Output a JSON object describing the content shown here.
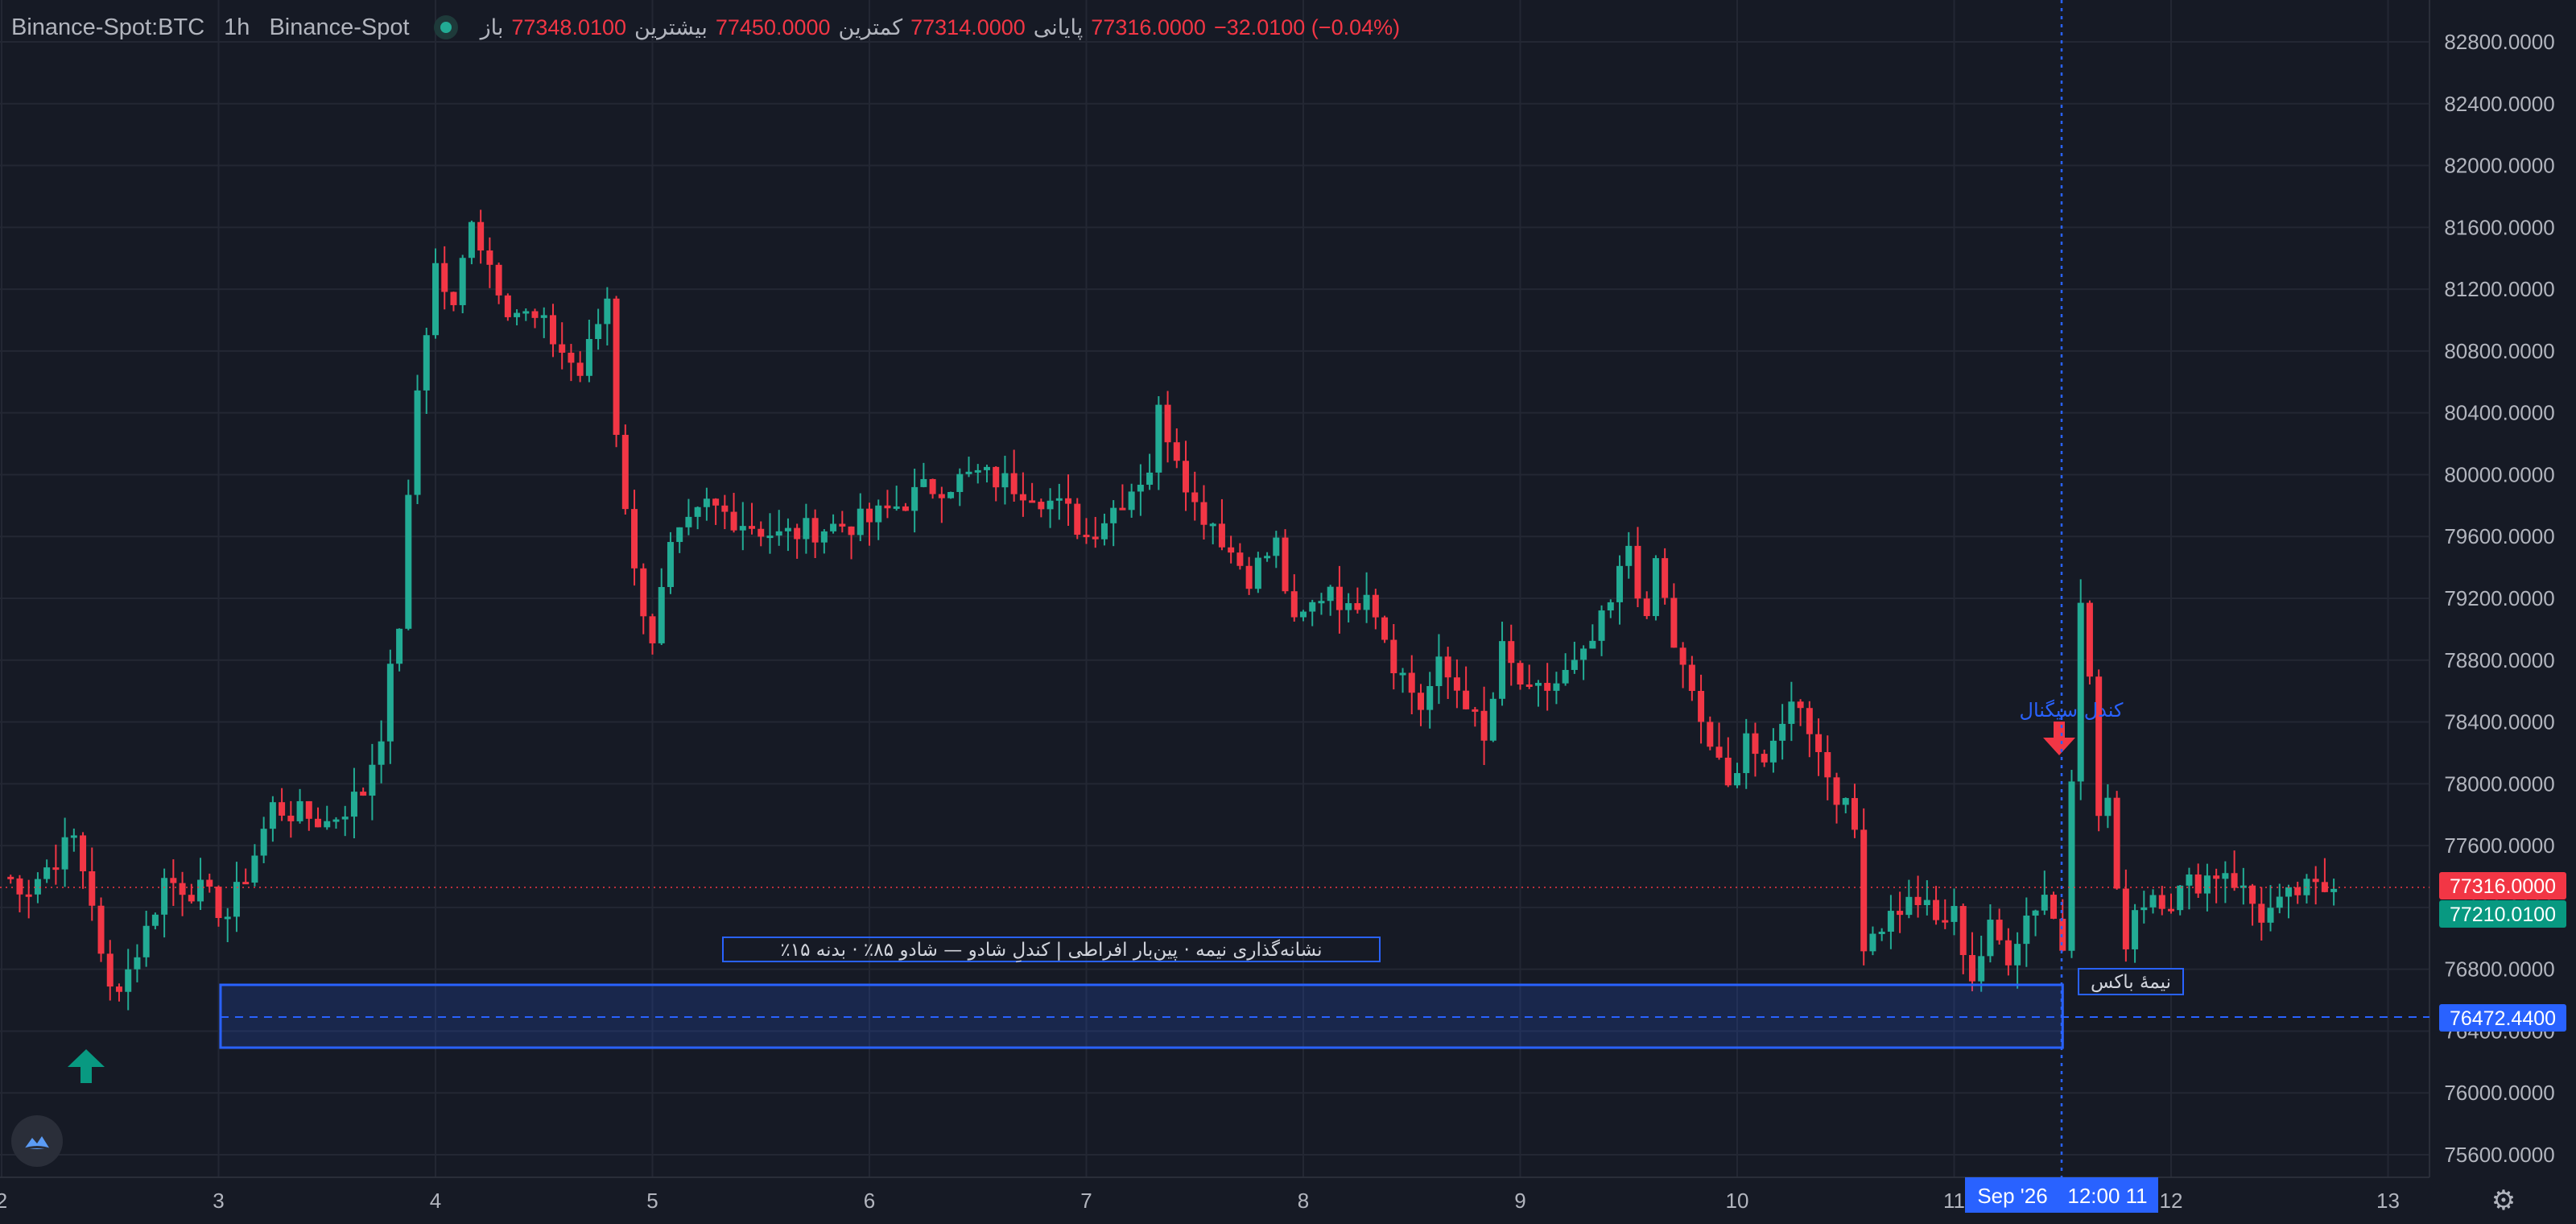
{
  "header": {
    "symbol": "Binance-Spot:BTC",
    "timeframe": "1h",
    "exchange": "Binance-Spot",
    "open_label": "باز",
    "open_value": "77348.0100",
    "high_label": "بیشترین",
    "high_value": "77450.0000",
    "low_label": "کمترین",
    "low_value": "77314.0000",
    "close_label": "پایانی",
    "close_value": "77316.0000",
    "change": "−32.0100 (−0.04%)"
  },
  "colors": {
    "up": "#22ab94",
    "down": "#f23645",
    "accent": "#2962ff",
    "background": "#161a25",
    "grid": "#232733",
    "text": "#b2b5be"
  },
  "icons": {
    "status": "status-dot-icon",
    "logo": "cloud-logo-icon",
    "settings": "gear-icon",
    "buy_marker": "arrow-up-icon",
    "sell_marker": "arrow-down-icon"
  },
  "price_badges": {
    "last_price": "77316.0000",
    "indicator_price": "77210.0100",
    "box_mid_price": "76472.4400"
  },
  "crosshair_labels": {
    "date": "Sep '26",
    "time": "12:00 11"
  },
  "annotations": {
    "box_label": "٪نشانه‌گذاری نیمه · پین‌بار افراطی | کندلِ شادو — شادو ۸۵٪ · بدنه ۱۵",
    "box_tag": "نیمهٔ باکس",
    "signal_label": "کندل سیگنال"
  },
  "chart_data": {
    "type": "candlestick",
    "title": "",
    "xlabel": "",
    "ylabel": "",
    "ylim": [
      75400,
      83000
    ],
    "grid": true,
    "y_ticks": [
      "82800.0000",
      "82400.0000",
      "82000.0000",
      "81600.0000",
      "81200.0000",
      "80800.0000",
      "80400.0000",
      "80000.0000",
      "79600.0000",
      "79200.0000",
      "78800.0000",
      "78400.0000",
      "78000.0000",
      "77600.0000",
      "77200.0000",
      "76800.0000",
      "76400.0000",
      "76000.0000",
      "75600.0000"
    ],
    "x_ticks": [
      {
        "label": "2",
        "day": 2
      },
      {
        "label": "3",
        "day": 3
      },
      {
        "label": "4",
        "day": 4
      },
      {
        "label": "5",
        "day": 5
      },
      {
        "label": "6",
        "day": 6
      },
      {
        "label": "7",
        "day": 7
      },
      {
        "label": "8",
        "day": 8
      },
      {
        "label": "9",
        "day": 9
      },
      {
        "label": "10",
        "day": 10
      },
      {
        "label": "11",
        "day": 11
      },
      {
        "label": "12",
        "day": 12
      },
      {
        "label": "13",
        "day": 13
      }
    ],
    "x_start_day": 2,
    "candle_hours": 1,
    "close_path": [
      [
        0,
        77400
      ],
      [
        3,
        77330
      ],
      [
        8,
        77650
      ],
      [
        10,
        77250
      ],
      [
        11,
        76850
      ],
      [
        12,
        76660
      ],
      [
        14,
        76800
      ],
      [
        16,
        77050
      ],
      [
        18,
        77380
      ],
      [
        22,
        77300
      ],
      [
        25,
        77150
      ],
      [
        28,
        77550
      ],
      [
        30,
        77850
      ],
      [
        36,
        77750
      ],
      [
        40,
        77950
      ],
      [
        42,
        78350
      ],
      [
        44,
        79050
      ],
      [
        46,
        80550
      ],
      [
        48,
        81350
      ],
      [
        50,
        81050
      ],
      [
        52,
        81700
      ],
      [
        53,
        81500
      ],
      [
        56,
        81100
      ],
      [
        60,
        80950
      ],
      [
        64,
        80650
      ],
      [
        67,
        81150
      ],
      [
        68,
        80300
      ],
      [
        70,
        79350
      ],
      [
        72,
        78950
      ],
      [
        74,
        79500
      ],
      [
        78,
        79800
      ],
      [
        82,
        79700
      ],
      [
        86,
        79600
      ],
      [
        90,
        79650
      ],
      [
        96,
        79700
      ],
      [
        102,
        79900
      ],
      [
        108,
        80000
      ],
      [
        114,
        79900
      ],
      [
        118,
        79750
      ],
      [
        120,
        79600
      ],
      [
        124,
        79850
      ],
      [
        127,
        80050
      ],
      [
        128,
        80400
      ],
      [
        130,
        80150
      ],
      [
        132,
        79800
      ],
      [
        134,
        79700
      ],
      [
        136,
        79500
      ],
      [
        138,
        79350
      ],
      [
        141,
        79550
      ],
      [
        143,
        79000
      ],
      [
        145,
        79150
      ],
      [
        147,
        79300
      ],
      [
        149,
        79100
      ],
      [
        151,
        79300
      ],
      [
        154,
        78800
      ],
      [
        157,
        78500
      ],
      [
        159,
        78750
      ],
      [
        162,
        78550
      ],
      [
        164,
        78250
      ],
      [
        166,
        78850
      ],
      [
        169,
        78550
      ],
      [
        172,
        78650
      ],
      [
        175,
        78800
      ],
      [
        178,
        79150
      ],
      [
        180,
        79550
      ],
      [
        182,
        79000
      ],
      [
        183,
        79450
      ],
      [
        185,
        78900
      ],
      [
        187,
        78550
      ],
      [
        189,
        78250
      ],
      [
        191,
        77950
      ],
      [
        193,
        78350
      ],
      [
        195,
        78050
      ],
      [
        197,
        78450
      ],
      [
        199,
        78550
      ],
      [
        201,
        78200
      ],
      [
        203,
        77950
      ],
      [
        205,
        77700
      ],
      [
        206,
        77000
      ],
      [
        208,
        77100
      ],
      [
        210,
        77200
      ],
      [
        212,
        77250
      ],
      [
        214,
        77100
      ],
      [
        216,
        77150
      ],
      [
        218,
        76750
      ],
      [
        220,
        77050
      ],
      [
        222,
        76900
      ],
      [
        224,
        77150
      ],
      [
        226,
        77300
      ],
      [
        228,
        76950
      ],
      [
        229,
        78100
      ],
      [
        230,
        79250
      ],
      [
        231,
        78650
      ],
      [
        232,
        77800
      ],
      [
        233,
        77900
      ],
      [
        234,
        77250
      ],
      [
        235,
        77000
      ],
      [
        236,
        77200
      ],
      [
        238,
        77300
      ],
      [
        240,
        77250
      ],
      [
        242,
        77350
      ],
      [
        244,
        77400
      ],
      [
        246,
        77450
      ],
      [
        248,
        77300
      ],
      [
        250,
        77150
      ],
      [
        252,
        77200
      ],
      [
        254,
        77300
      ],
      [
        258,
        77320
      ]
    ],
    "crosshair_x": {
      "day": 11,
      "hour": 12
    }
  }
}
